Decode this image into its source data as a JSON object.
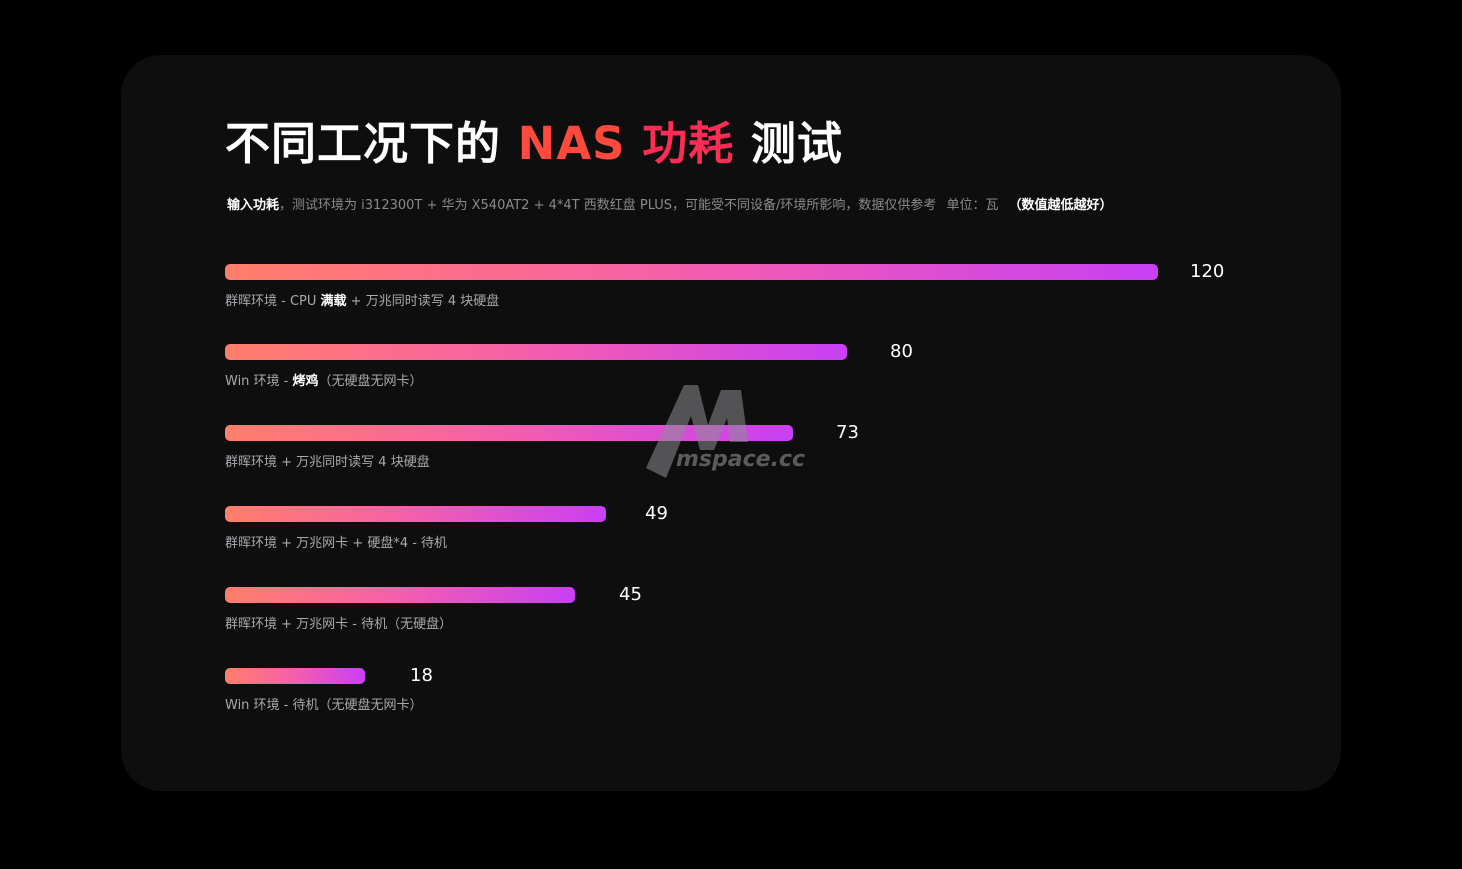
{
  "title": {
    "part1": "不同工况下的 ",
    "part2": "NAS",
    "part3": "功耗",
    "part4": " 测试"
  },
  "subtitle": {
    "lead": "输入功耗",
    "sep": "，",
    "body": "测试环境为 i312300T + 华为 X540AT2 + 4*4T 西数红盘 PLUS，可能受不同设备/环境所影响，数据仅供参考",
    "unit": "单位：瓦",
    "note": "（数值越低越好）"
  },
  "watermark": {
    "letter": "M",
    "text": "mspace.cc"
  },
  "colors": {
    "title_accent_nas": "#ff4a3d",
    "title_accent_power": "#ff2d55",
    "bar_start": "#ff7f6b",
    "bar_end": "#c93ff5",
    "background": "#0e0e0f"
  },
  "chart_data": {
    "type": "bar",
    "orientation": "horizontal",
    "categories": [
      "群晖环境 - CPU 满载 + 万兆同时读写 4 块硬盘",
      "Win 环境 - 烤鸡（无硬盘无网卡）",
      "群晖环境 + 万兆同时读写 4 块硬盘",
      "群晖环境 + 万兆网卡 + 硬盘*4 - 待机",
      "群晖环境 + 万兆网卡 - 待机（无硬盘）",
      "Win 环境 - 待机（无硬盘无网卡）"
    ],
    "label_parts": [
      {
        "pre": "群晖环境 - CPU ",
        "bold": "满载",
        "post": " + 万兆同时读写 4 块硬盘"
      },
      {
        "pre": "Win 环境 - ",
        "bold": "烤鸡",
        "post": "（无硬盘无网卡）"
      },
      {
        "pre": "群晖环境 + 万兆同时读写 4 块硬盘",
        "bold": "",
        "post": ""
      },
      {
        "pre": "群晖环境 + 万兆网卡 + 硬盘*4 - 待机",
        "bold": "",
        "post": ""
      },
      {
        "pre": "群晖环境 + 万兆网卡 - 待机（无硬盘）",
        "bold": "",
        "post": ""
      },
      {
        "pre": "Win 环境 - 待机（无硬盘无网卡）",
        "bold": "",
        "post": ""
      }
    ],
    "values": [
      120,
      80,
      73,
      49,
      45,
      18
    ],
    "value_labels": [
      "120",
      "80",
      "73",
      "49",
      "45",
      "18"
    ],
    "xlim": [
      0,
      120
    ],
    "grid": false,
    "legend": "none"
  }
}
